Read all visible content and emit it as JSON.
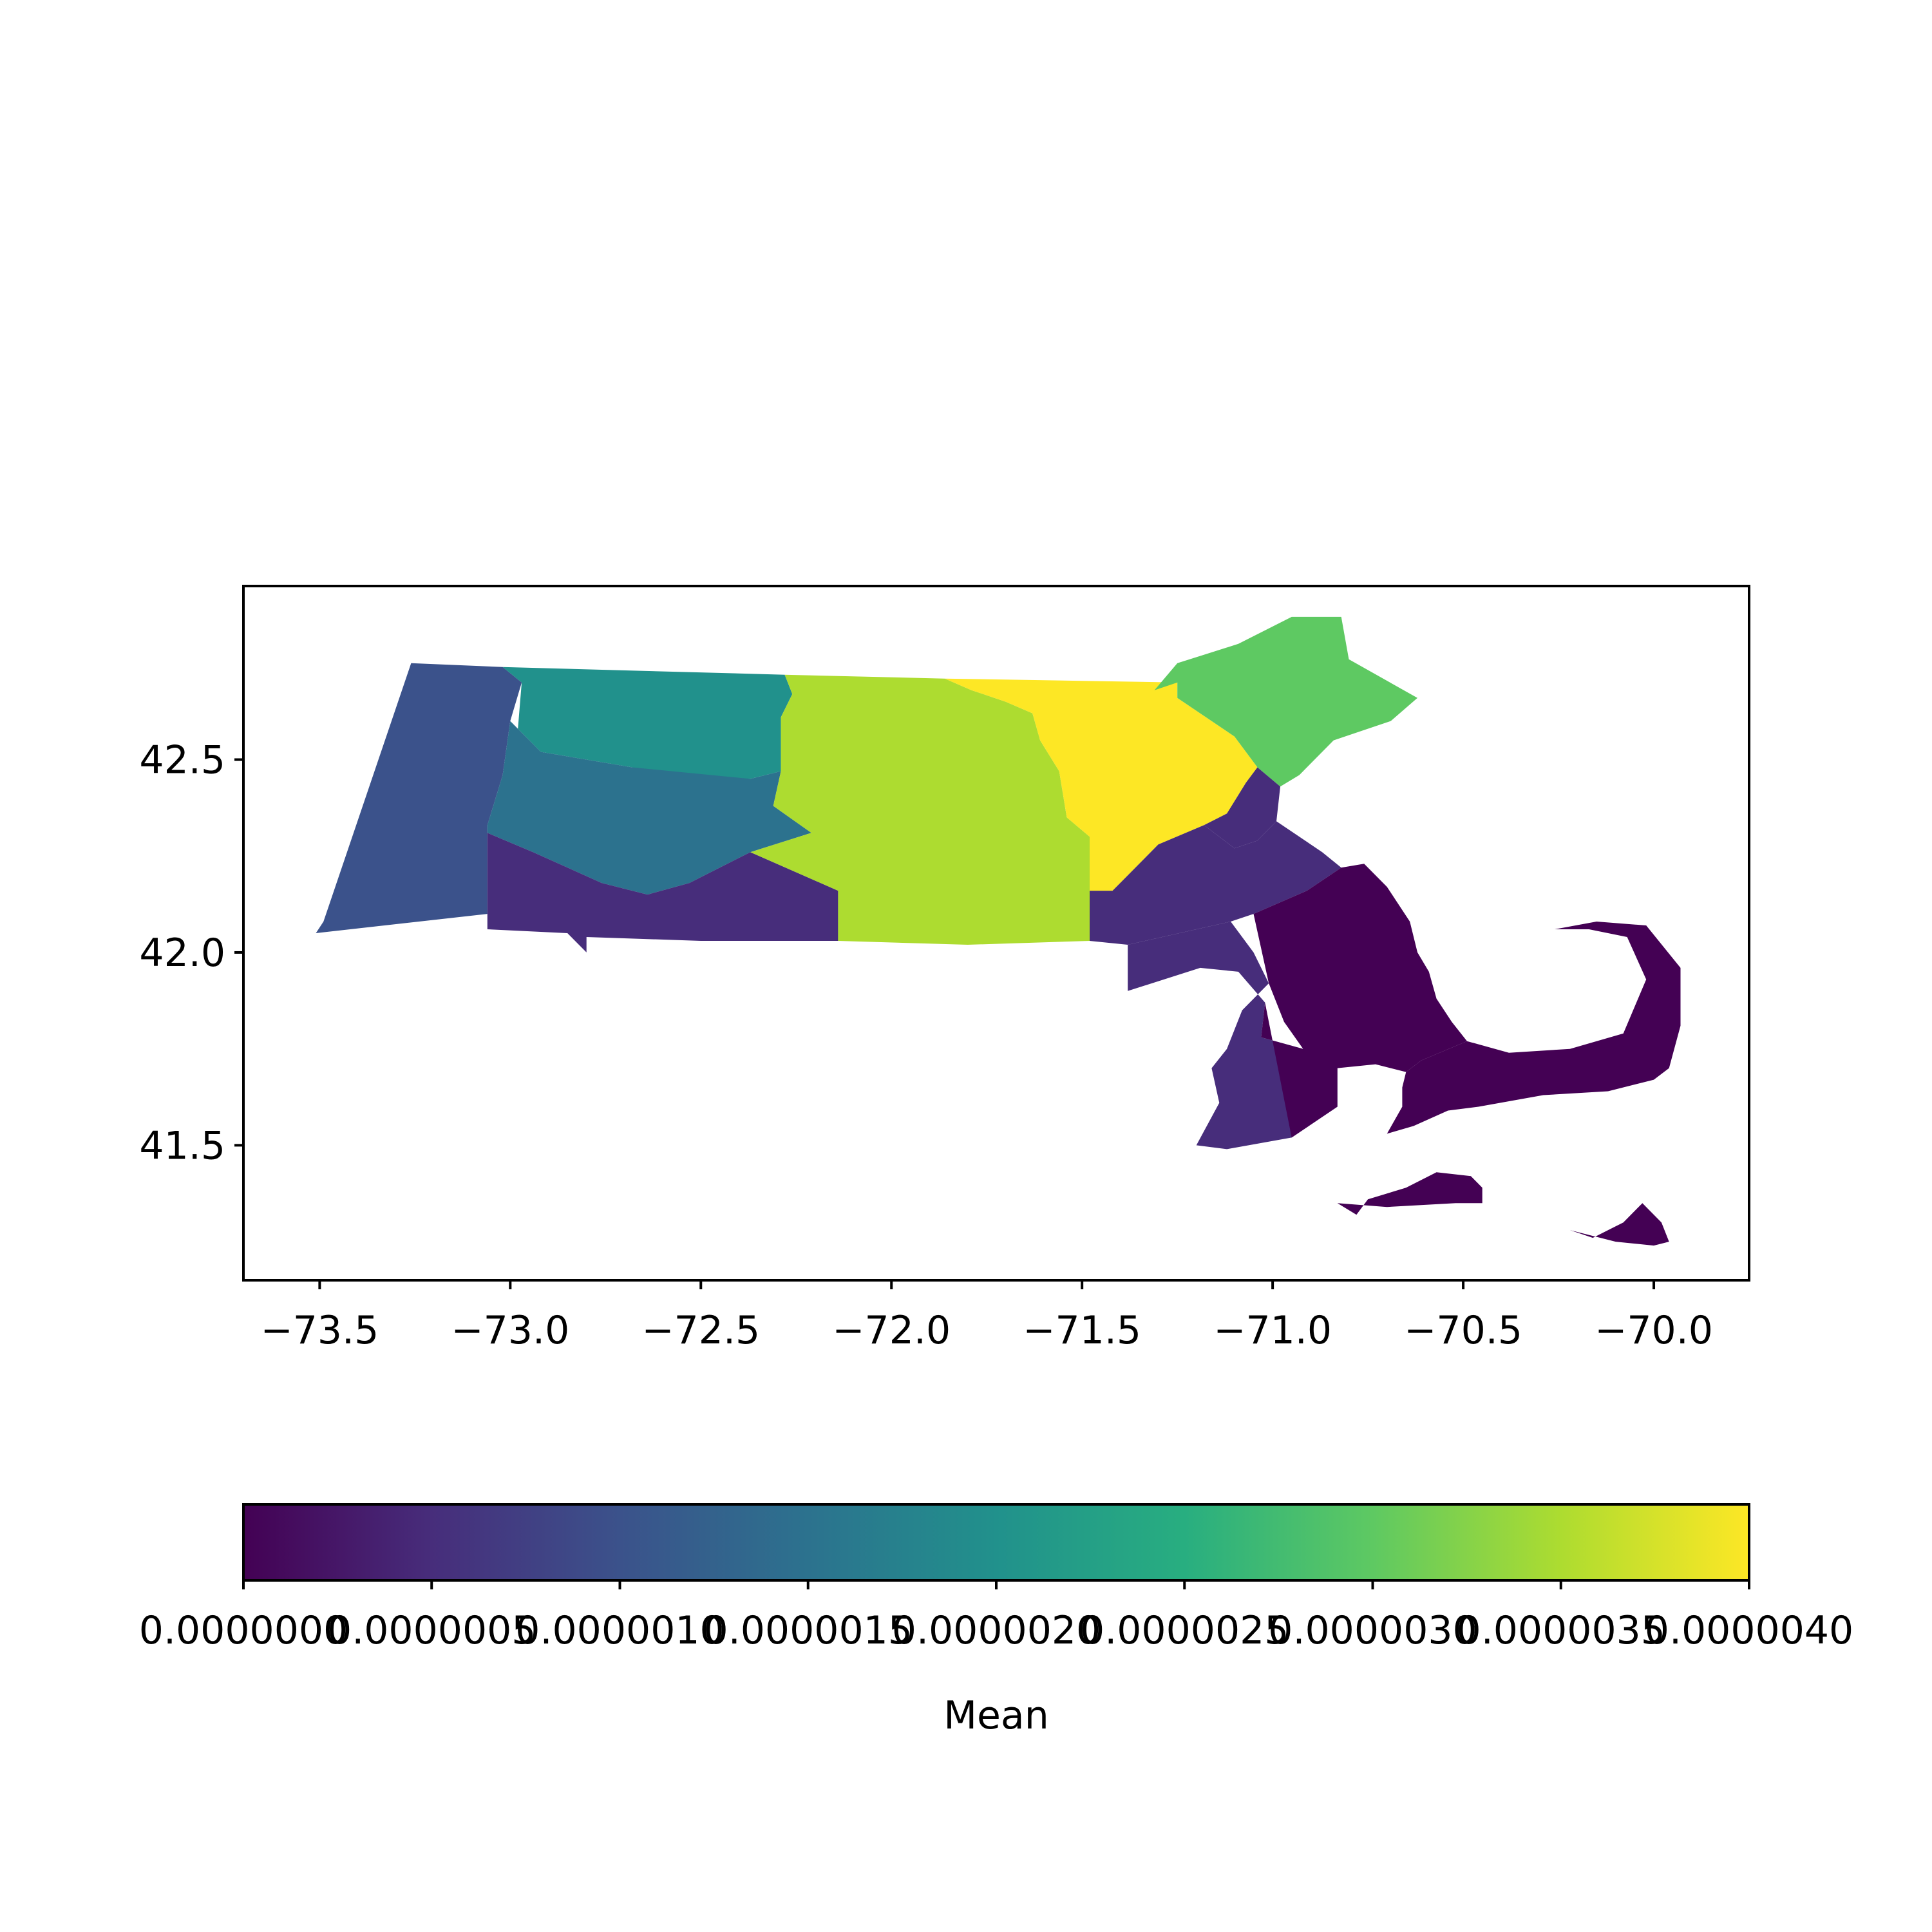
{
  "chart_data": {
    "type": "choropleth",
    "map": "Massachusetts",
    "colormap": "viridis",
    "xlim": [
      -73.7,
      -69.75
    ],
    "ylim": [
      41.15,
      42.95
    ],
    "x_ticks": [
      {
        "value": -73.5,
        "label": "−73.5"
      },
      {
        "value": -73.0,
        "label": "−73.0"
      },
      {
        "value": -72.5,
        "label": "−72.5"
      },
      {
        "value": -72.0,
        "label": "−72.0"
      },
      {
        "value": -71.5,
        "label": "−71.5"
      },
      {
        "value": -71.0,
        "label": "−71.0"
      },
      {
        "value": -70.5,
        "label": "−70.5"
      },
      {
        "value": -70.0,
        "label": "−70.0"
      }
    ],
    "y_ticks": [
      {
        "value": 41.5,
        "label": "41.5"
      },
      {
        "value": 42.0,
        "label": "42.0"
      },
      {
        "value": 42.5,
        "label": "42.5"
      }
    ],
    "colorbar": {
      "label": "Mean",
      "orientation": "horizontal",
      "range": [
        0.0,
        4e-06
      ],
      "ticks": [
        {
          "value": 0.0,
          "label": "0.0000000"
        },
        {
          "value": 5e-07,
          "label": "0.0000005"
        },
        {
          "value": 1e-06,
          "label": "0.0000010"
        },
        {
          "value": 1.5e-06,
          "label": "0.0000015"
        },
        {
          "value": 2e-06,
          "label": "0.0000020"
        },
        {
          "value": 2.5e-06,
          "label": "0.0000025"
        },
        {
          "value": 3e-06,
          "label": "0.0000030"
        },
        {
          "value": 3.5e-06,
          "label": "0.0000035"
        },
        {
          "value": 4e-06,
          "label": "0.0000040"
        }
      ]
    },
    "regions": [
      {
        "id": "berkshire",
        "value": 1e-06,
        "coords": [
          [
            -73.26,
            42.75
          ],
          [
            -73.02,
            42.74
          ],
          [
            -72.97,
            42.7
          ],
          [
            -73.0,
            42.6
          ],
          [
            -73.02,
            42.46
          ],
          [
            -73.06,
            42.33
          ],
          [
            -73.06,
            42.1
          ],
          [
            -73.51,
            42.05
          ],
          [
            -73.49,
            42.08
          ]
        ]
      },
      {
        "id": "franklin",
        "value": 2e-06,
        "coords": [
          [
            -73.02,
            42.74
          ],
          [
            -72.28,
            42.72
          ],
          [
            -72.26,
            42.67
          ],
          [
            -72.29,
            42.61
          ],
          [
            -72.29,
            42.47
          ],
          [
            -72.37,
            42.45
          ],
          [
            -72.57,
            42.45
          ],
          [
            -72.68,
            42.48
          ],
          [
            -72.92,
            42.52
          ],
          [
            -72.98,
            42.58
          ],
          [
            -72.97,
            42.7
          ]
        ]
      },
      {
        "id": "hampshire",
        "value": 1.5e-06,
        "coords": [
          [
            -73.0,
            42.6
          ],
          [
            -72.92,
            42.52
          ],
          [
            -72.68,
            42.48
          ],
          [
            -72.37,
            42.45
          ],
          [
            -72.29,
            42.47
          ],
          [
            -72.31,
            42.38
          ],
          [
            -72.21,
            42.31
          ],
          [
            -72.37,
            42.26
          ],
          [
            -72.53,
            42.18
          ],
          [
            -72.64,
            42.15
          ],
          [
            -72.76,
            42.18
          ],
          [
            -72.94,
            42.26
          ],
          [
            -73.06,
            42.31
          ],
          [
            -73.06,
            42.33
          ],
          [
            -73.02,
            42.46
          ]
        ]
      },
      {
        "id": "hampden",
        "value": 5e-07,
        "coords": [
          [
            -73.06,
            42.31
          ],
          [
            -72.94,
            42.26
          ],
          [
            -72.76,
            42.18
          ],
          [
            -72.64,
            42.15
          ],
          [
            -72.53,
            42.18
          ],
          [
            -72.37,
            42.26
          ],
          [
            -72.14,
            42.16
          ],
          [
            -72.14,
            42.03
          ],
          [
            -72.5,
            42.03
          ],
          [
            -72.8,
            42.04
          ],
          [
            -72.8,
            42.0
          ],
          [
            -72.85,
            42.05
          ],
          [
            -73.06,
            42.06
          ],
          [
            -73.06,
            42.1
          ]
        ]
      },
      {
        "id": "worcester",
        "value": 3.5e-06,
        "coords": [
          [
            -72.28,
            42.72
          ],
          [
            -71.86,
            42.71
          ],
          [
            -71.79,
            42.68
          ],
          [
            -71.7,
            42.65
          ],
          [
            -71.63,
            42.62
          ],
          [
            -71.61,
            42.55
          ],
          [
            -71.56,
            42.47
          ],
          [
            -71.54,
            42.35
          ],
          [
            -71.48,
            42.3
          ],
          [
            -71.48,
            42.23
          ],
          [
            -71.48,
            42.03
          ],
          [
            -71.8,
            42.02
          ],
          [
            -72.14,
            42.03
          ],
          [
            -72.14,
            42.16
          ],
          [
            -72.37,
            42.26
          ],
          [
            -72.21,
            42.31
          ],
          [
            -72.31,
            42.38
          ],
          [
            -72.29,
            42.47
          ],
          [
            -72.29,
            42.61
          ],
          [
            -72.26,
            42.67
          ]
        ]
      },
      {
        "id": "middlesex",
        "value": 4e-06,
        "coords": [
          [
            -71.86,
            42.71
          ],
          [
            -71.25,
            42.7
          ],
          [
            -71.25,
            42.66
          ],
          [
            -71.1,
            42.56
          ],
          [
            -71.04,
            42.48
          ],
          [
            -71.07,
            42.44
          ],
          [
            -71.12,
            42.36
          ],
          [
            -71.18,
            42.33
          ],
          [
            -71.3,
            42.28
          ],
          [
            -71.38,
            42.2
          ],
          [
            -71.42,
            42.16
          ],
          [
            -71.48,
            42.16
          ],
          [
            -71.48,
            42.23
          ],
          [
            -71.48,
            42.3
          ],
          [
            -71.54,
            42.35
          ],
          [
            -71.56,
            42.47
          ],
          [
            -71.61,
            42.55
          ],
          [
            -71.63,
            42.62
          ],
          [
            -71.7,
            42.65
          ],
          [
            -71.79,
            42.68
          ]
        ]
      },
      {
        "id": "essex",
        "value": 3e-06,
        "coords": [
          [
            -71.25,
            42.7
          ],
          [
            -71.31,
            42.68
          ],
          [
            -71.25,
            42.75
          ],
          [
            -71.09,
            42.8
          ],
          [
            -70.95,
            42.87
          ],
          [
            -70.82,
            42.87
          ],
          [
            -70.8,
            42.76
          ],
          [
            -70.62,
            42.66
          ],
          [
            -70.69,
            42.6
          ],
          [
            -70.84,
            42.55
          ],
          [
            -70.93,
            42.46
          ],
          [
            -70.98,
            42.43
          ],
          [
            -71.04,
            42.48
          ],
          [
            -71.1,
            42.56
          ],
          [
            -71.25,
            42.66
          ]
        ]
      },
      {
        "id": "suffolk",
        "value": 5e-07,
        "coords": [
          [
            -71.18,
            42.33
          ],
          [
            -71.12,
            42.36
          ],
          [
            -71.07,
            42.44
          ],
          [
            -71.04,
            42.48
          ],
          [
            -70.98,
            42.43
          ],
          [
            -70.99,
            42.34
          ],
          [
            -71.04,
            42.29
          ],
          [
            -71.1,
            42.27
          ]
        ]
      },
      {
        "id": "norfolk",
        "value": 5e-07,
        "coords": [
          [
            -71.48,
            42.16
          ],
          [
            -71.42,
            42.16
          ],
          [
            -71.38,
            42.2
          ],
          [
            -71.3,
            42.28
          ],
          [
            -71.18,
            42.33
          ],
          [
            -71.1,
            42.27
          ],
          [
            -71.04,
            42.29
          ],
          [
            -70.99,
            42.34
          ],
          [
            -70.87,
            42.26
          ],
          [
            -70.82,
            42.22
          ],
          [
            -70.91,
            42.16
          ],
          [
            -71.05,
            42.1
          ],
          [
            -71.11,
            42.08
          ],
          [
            -71.38,
            42.02
          ],
          [
            -71.48,
            42.03
          ]
        ]
      },
      {
        "id": "bristol",
        "value": 5e-07,
        "coords": [
          [
            -71.38,
            42.02
          ],
          [
            -71.11,
            42.08
          ],
          [
            -71.05,
            42.0
          ],
          [
            -71.01,
            41.92
          ],
          [
            -71.08,
            41.85
          ],
          [
            -71.12,
            41.75
          ],
          [
            -71.16,
            41.7
          ],
          [
            -71.14,
            41.61
          ],
          [
            -71.2,
            41.5
          ],
          [
            -71.12,
            41.49
          ],
          [
            -70.95,
            41.52
          ],
          [
            -70.83,
            41.6
          ],
          [
            -70.83,
            41.7
          ],
          [
            -70.92,
            41.75
          ],
          [
            -71.03,
            41.78
          ],
          [
            -71.02,
            41.87
          ],
          [
            -71.09,
            41.95
          ],
          [
            -71.19,
            41.96
          ],
          [
            -71.38,
            41.9
          ]
        ]
      },
      {
        "id": "plymouth",
        "value": 0.0,
        "coords": [
          [
            -71.05,
            42.1
          ],
          [
            -70.91,
            42.16
          ],
          [
            -70.82,
            42.22
          ],
          [
            -70.76,
            42.23
          ],
          [
            -70.7,
            42.17
          ],
          [
            -70.64,
            42.08
          ],
          [
            -70.62,
            42.0
          ],
          [
            -70.59,
            41.95
          ],
          [
            -70.57,
            41.88
          ],
          [
            -70.53,
            41.82
          ],
          [
            -70.49,
            41.77
          ],
          [
            -70.61,
            41.72
          ],
          [
            -70.65,
            41.69
          ],
          [
            -70.73,
            41.71
          ],
          [
            -70.83,
            41.7
          ],
          [
            -70.83,
            41.6
          ],
          [
            -70.95,
            41.52
          ],
          [
            -71.02,
            41.87
          ],
          [
            -71.03,
            41.78
          ],
          [
            -70.92,
            41.75
          ],
          [
            -70.97,
            41.82
          ],
          [
            -71.01,
            41.92
          ]
        ]
      },
      {
        "id": "barnstable",
        "value": 0.0,
        "coords": [
          [
            -70.65,
            41.69
          ],
          [
            -70.61,
            41.72
          ],
          [
            -70.49,
            41.77
          ],
          [
            -70.38,
            41.74
          ],
          [
            -70.22,
            41.75
          ],
          [
            -70.08,
            41.79
          ],
          [
            -70.02,
            41.93
          ],
          [
            -70.07,
            42.04
          ],
          [
            -70.17,
            42.06
          ],
          [
            -70.26,
            42.06
          ],
          [
            -70.15,
            42.08
          ],
          [
            -70.02,
            42.07
          ],
          [
            -69.93,
            41.96
          ],
          [
            -69.93,
            41.81
          ],
          [
            -69.96,
            41.7
          ],
          [
            -70.0,
            41.67
          ],
          [
            -70.12,
            41.64
          ],
          [
            -70.29,
            41.63
          ],
          [
            -70.46,
            41.6
          ],
          [
            -70.54,
            41.59
          ],
          [
            -70.63,
            41.55
          ],
          [
            -70.7,
            41.53
          ],
          [
            -70.66,
            41.6
          ],
          [
            -70.66,
            41.65
          ]
        ]
      },
      {
        "id": "marthas-vineyard",
        "value": 0.0,
        "coords": [
          [
            -70.83,
            41.35
          ],
          [
            -70.78,
            41.32
          ],
          [
            -70.75,
            41.36
          ],
          [
            -70.65,
            41.39
          ],
          [
            -70.57,
            41.43
          ],
          [
            -70.48,
            41.42
          ],
          [
            -70.45,
            41.39
          ],
          [
            -70.45,
            41.35
          ],
          [
            -70.52,
            41.35
          ],
          [
            -70.7,
            41.34
          ]
        ]
      },
      {
        "id": "nantucket",
        "value": 0.0,
        "coords": [
          [
            -70.22,
            41.28
          ],
          [
            -70.1,
            41.25
          ],
          [
            -70.0,
            41.24
          ],
          [
            -69.96,
            41.25
          ],
          [
            -69.98,
            41.3
          ],
          [
            -70.03,
            41.35
          ],
          [
            -70.08,
            41.3
          ],
          [
            -70.16,
            41.26
          ]
        ]
      }
    ]
  }
}
